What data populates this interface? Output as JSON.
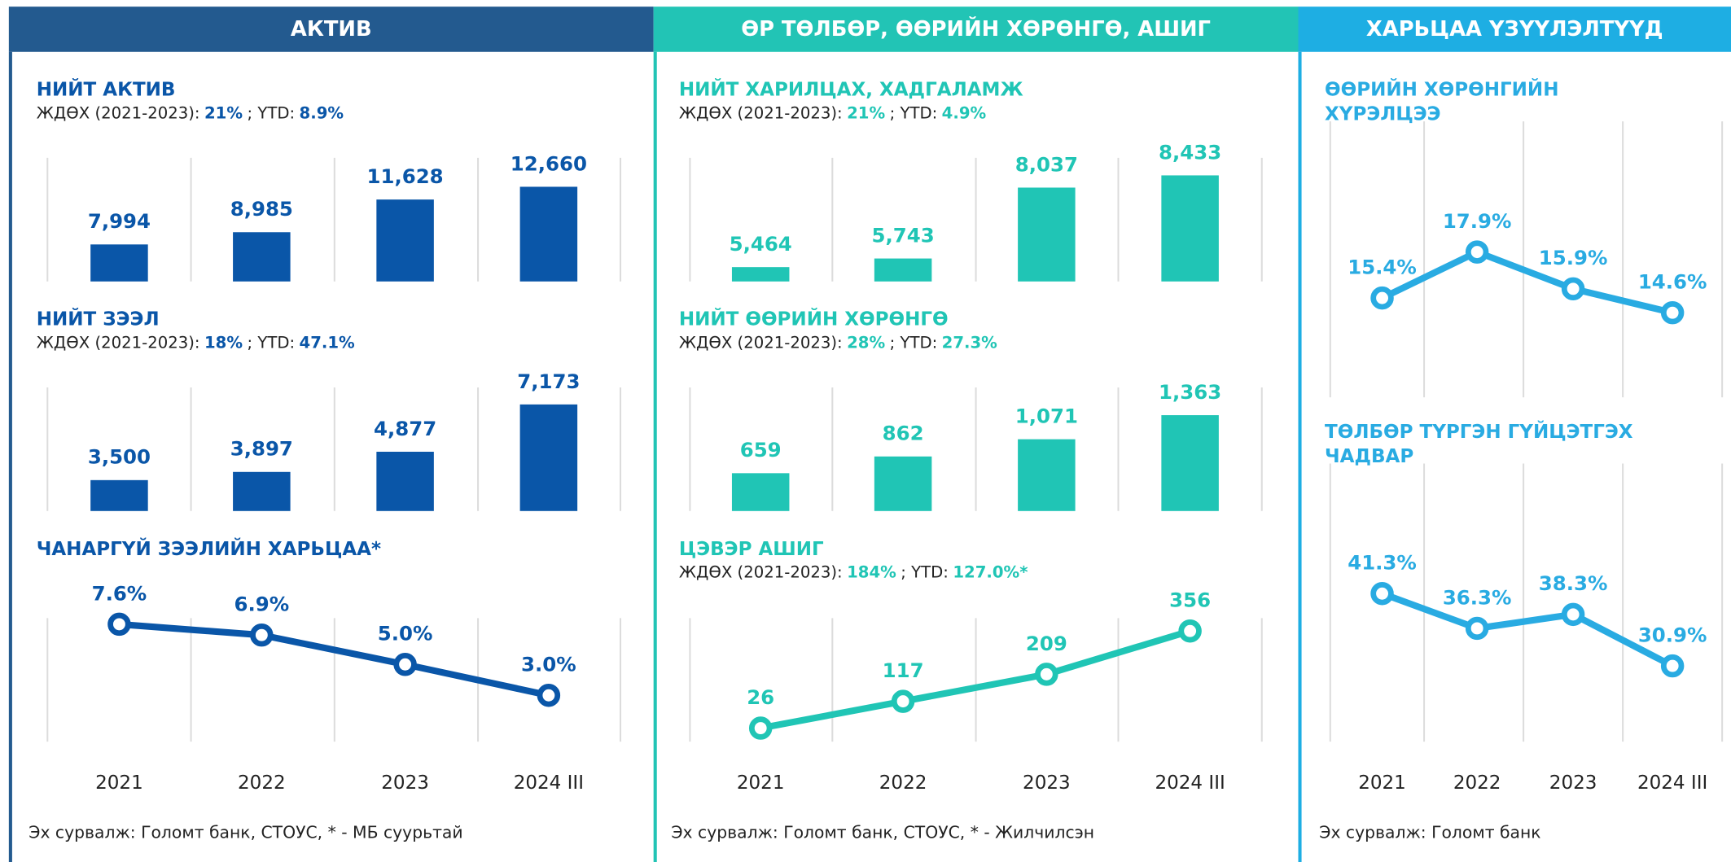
{
  "panels": [
    {
      "header": "АКТИВ",
      "source": "Эх сурвалж: Голомт банк, СТОУС, * - МБ суурьтай",
      "color": "#0a56a8",
      "header_color": "#235a8f"
    },
    {
      "header": "ӨР ТӨЛБӨР, ӨӨРИЙН ХӨРӨНГӨ, АШИГ",
      "source": "Эх сурвалж: Голомт банк, СТОУС, * - Жилчилсэн",
      "color": "#20c5b5",
      "header_color": "#22c4b5"
    },
    {
      "header": "ХАРЬЦАА ҮЗҮҮЛЭЛТҮҮД",
      "source": "Эх сурвалж: Голомт банк",
      "color": "#29abe2",
      "header_color": "#1eaee3"
    }
  ],
  "chart_data": [
    {
      "type": "bar",
      "title": "НИЙТ АКТИВ",
      "subtitle": [
        {
          "text": "ЖДӨХ (2021-2023):"
        },
        {
          "text": "21%",
          "bold": true
        },
        {
          "text": "; YTD:"
        },
        {
          "text": "8.9%",
          "bold": true
        }
      ],
      "values": [
        7994,
        8985,
        11628,
        12660
      ],
      "value_labels": [
        "7,994",
        "8,985",
        "11,628",
        "12,660"
      ],
      "ylim": [
        5000,
        15000
      ],
      "color": "#0a56a8"
    },
    {
      "type": "bar",
      "title": "НИЙТ ЗЭЭЛ",
      "subtitle": [
        {
          "text": "ЖДӨХ (2021-2023):"
        },
        {
          "text": "18%",
          "bold": true
        },
        {
          "text": "; YTD:"
        },
        {
          "text": "47.1%",
          "bold": true
        }
      ],
      "values": [
        3500,
        3897,
        4877,
        7173
      ],
      "value_labels": [
        "3,500",
        "3,897",
        "4,877",
        "7,173"
      ],
      "ylim": [
        2000,
        8000
      ],
      "color": "#0a56a8"
    },
    {
      "type": "line",
      "title": "ЧАНАРГҮЙ ЗЭЭЛИЙН ХАРЬЦАА*",
      "categories": [
        "2021",
        "2022",
        "2023",
        "2024 III"
      ],
      "values": [
        7.6,
        6.9,
        5.0,
        3.0
      ],
      "value_labels": [
        "7.6%",
        "6.9%",
        "5.0%",
        "3.0%"
      ],
      "ylim": [
        0,
        8
      ],
      "color": "#0a56a8"
    },
    {
      "type": "bar",
      "title": "НИЙТ ХАРИЛЦАХ, ХАДГАЛАМЖ",
      "subtitle": [
        {
          "text": "ЖДӨХ (2021-2023):"
        },
        {
          "text": "21%",
          "bold": true
        },
        {
          "text": "; YTD:"
        },
        {
          "text": "4.9%",
          "bold": true
        }
      ],
      "values": [
        5464,
        5743,
        8037,
        8433
      ],
      "value_labels": [
        "5,464",
        "5,743",
        "8,037",
        "8,433"
      ],
      "ylim": [
        5000,
        9000
      ],
      "color": "#20c5b5"
    },
    {
      "type": "bar",
      "title": "НИЙТ ӨӨРИЙН ХӨРӨНГӨ",
      "subtitle": [
        {
          "text": "ЖДӨХ (2021-2023):"
        },
        {
          "text": "28%",
          "bold": true
        },
        {
          "text": "; YTD:"
        },
        {
          "text": "27.3%",
          "bold": true
        }
      ],
      "values": [
        659,
        862,
        1071,
        1363
      ],
      "value_labels": [
        "659",
        "862",
        "1,071",
        "1,363"
      ],
      "ylim": [
        200,
        1700
      ],
      "color": "#20c5b5"
    },
    {
      "type": "line",
      "title": "ЦЭВЭР АШИГ",
      "subtitle": [
        {
          "text": "ЖДӨХ (2021-2023):"
        },
        {
          "text": "184%",
          "bold": true
        },
        {
          "text": "; YTD:"
        },
        {
          "text": "127.0%*",
          "bold": true
        }
      ],
      "categories": [
        "2021",
        "2022",
        "2023",
        "2024 III"
      ],
      "values": [
        26,
        117,
        209,
        356
      ],
      "ylim": [
        -20,
        400
      ],
      "color": "#20c5b5"
    },
    {
      "type": "line",
      "title": [
        "ӨӨРИЙН ХӨРӨНГИЙН",
        "ХҮРЭЛЦЭЭ"
      ],
      "values": [
        15.4,
        17.9,
        15.9,
        14.6
      ],
      "value_labels": [
        "15.4%",
        "17.9%",
        "15.9%",
        "14.6%"
      ],
      "ylim": [
        10,
        25
      ],
      "color": "#29abe2"
    },
    {
      "type": "line",
      "title": [
        "ТӨЛБӨР ТҮРГЭН ГҮЙЦЭТГЭХ",
        "ЧАДВАР"
      ],
      "categories": [
        "2021",
        "2022",
        "2023",
        "2024 III"
      ],
      "values": [
        41.3,
        36.3,
        38.3,
        30.9
      ],
      "value_labels": [
        "41.3%",
        "36.3%",
        "38.3%",
        "30.9%"
      ],
      "ylim": [
        20,
        60
      ],
      "color": "#29abe2"
    }
  ]
}
